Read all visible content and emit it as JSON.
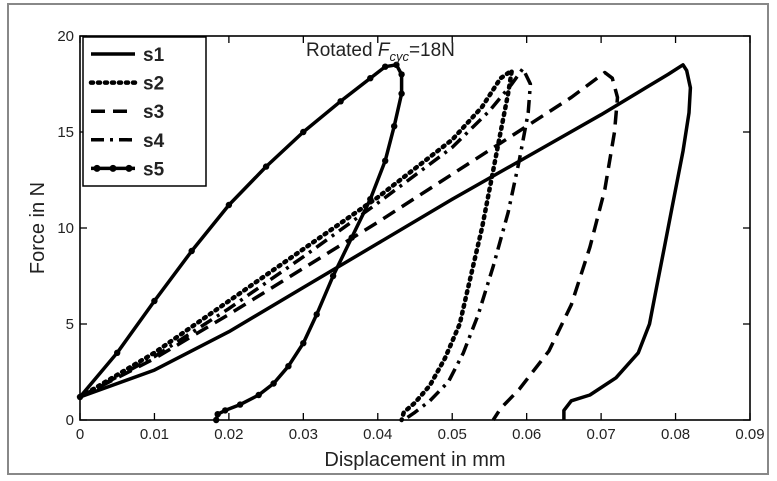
{
  "chart_data": {
    "type": "line",
    "title": "",
    "annotation": {
      "prefix": "Rotated ",
      "symbol": "F",
      "subscript": "cyc",
      "suffix": "=18N"
    },
    "xlabel": "Displacement in mm",
    "ylabel": "Force in N",
    "xlim": [
      0,
      0.09
    ],
    "ylim": [
      0,
      20
    ],
    "x_ticks": [
      "0",
      "0.01",
      "0.02",
      "0.03",
      "0.04",
      "0.05",
      "0.06",
      "0.07",
      "0.08",
      "0.09"
    ],
    "y_ticks": [
      "0",
      "5",
      "10",
      "15",
      "20"
    ],
    "grid": false,
    "legend_position": "top-left",
    "series": [
      {
        "name": "s1",
        "style": "solid",
        "color": "#000000",
        "x": [
          0,
          0.01,
          0.02,
          0.03,
          0.04,
          0.05,
          0.06,
          0.07,
          0.076,
          0.079,
          0.081,
          0.0815,
          0.082,
          0.0818,
          0.081,
          0.0795,
          0.0785,
          0.0775,
          0.0765,
          0.075,
          0.072,
          0.0685,
          0.066,
          0.065,
          0.065
        ],
        "y": [
          1.2,
          2.6,
          4.6,
          6.9,
          9.2,
          11.5,
          13.7,
          15.9,
          17.3,
          18.0,
          18.5,
          18.2,
          17.3,
          16.0,
          14.0,
          11.0,
          9.0,
          7.0,
          5.0,
          3.5,
          2.2,
          1.3,
          1.0,
          0.5,
          0
        ],
        "markers": false
      },
      {
        "name": "s2",
        "style": "dotted",
        "color": "#000000",
        "x": [
          0,
          0.01,
          0.02,
          0.03,
          0.04,
          0.05,
          0.054,
          0.0565,
          0.058,
          0.0575,
          0.0565,
          0.0555,
          0.054,
          0.0525,
          0.051,
          0.049,
          0.047,
          0.045,
          0.0435,
          0.0432
        ],
        "y": [
          1.2,
          3.5,
          6.2,
          8.9,
          11.6,
          14.6,
          16.3,
          17.8,
          18.2,
          17.0,
          15.0,
          13.0,
          10.0,
          7.5,
          5.0,
          3.2,
          1.8,
          0.9,
          0.4,
          0
        ],
        "markers": false
      },
      {
        "name": "s3",
        "style": "dashed",
        "color": "#000000",
        "x": [
          0,
          0.01,
          0.02,
          0.03,
          0.04,
          0.05,
          0.06,
          0.066,
          0.0705,
          0.0715,
          0.0722,
          0.0718,
          0.0705,
          0.0685,
          0.066,
          0.063,
          0.059,
          0.0565,
          0.0555
        ],
        "y": [
          1.2,
          3.2,
          5.5,
          7.9,
          10.3,
          12.8,
          15.3,
          16.8,
          18.1,
          17.8,
          16.8,
          15.0,
          12.0,
          9.0,
          6.0,
          3.6,
          1.6,
          0.6,
          0
        ],
        "markers": false
      },
      {
        "name": "s4",
        "style": "dashdot",
        "color": "#000000",
        "x": [
          0,
          0.01,
          0.02,
          0.03,
          0.04,
          0.05,
          0.055,
          0.058,
          0.0595,
          0.0605,
          0.0602,
          0.059,
          0.0575,
          0.0555,
          0.0535,
          0.0515,
          0.0495,
          0.047,
          0.045,
          0.0435
        ],
        "y": [
          1.2,
          3.3,
          5.8,
          8.5,
          11.3,
          14.2,
          16.1,
          17.5,
          18.3,
          17.5,
          16.0,
          13.5,
          10.8,
          8.0,
          5.5,
          3.5,
          2.0,
          1.0,
          0.4,
          0
        ],
        "markers": false
      },
      {
        "name": "s5",
        "style": "solid",
        "color": "#000000",
        "x": [
          0,
          0.005,
          0.01,
          0.015,
          0.02,
          0.025,
          0.03,
          0.035,
          0.039,
          0.041,
          0.0425,
          0.0432,
          0.0432,
          0.0422,
          0.041,
          0.039,
          0.0365,
          0.034,
          0.0318,
          0.03,
          0.028,
          0.026,
          0.024,
          0.0215,
          0.0195,
          0.0185,
          0.0183
        ],
        "y": [
          1.2,
          3.5,
          6.2,
          8.8,
          11.2,
          13.2,
          15.0,
          16.6,
          17.8,
          18.4,
          18.5,
          18.0,
          17.0,
          15.3,
          13.5,
          11.5,
          9.5,
          7.5,
          5.5,
          4.0,
          2.8,
          1.9,
          1.3,
          0.8,
          0.5,
          0.3,
          0
        ],
        "markers": true
      }
    ]
  }
}
